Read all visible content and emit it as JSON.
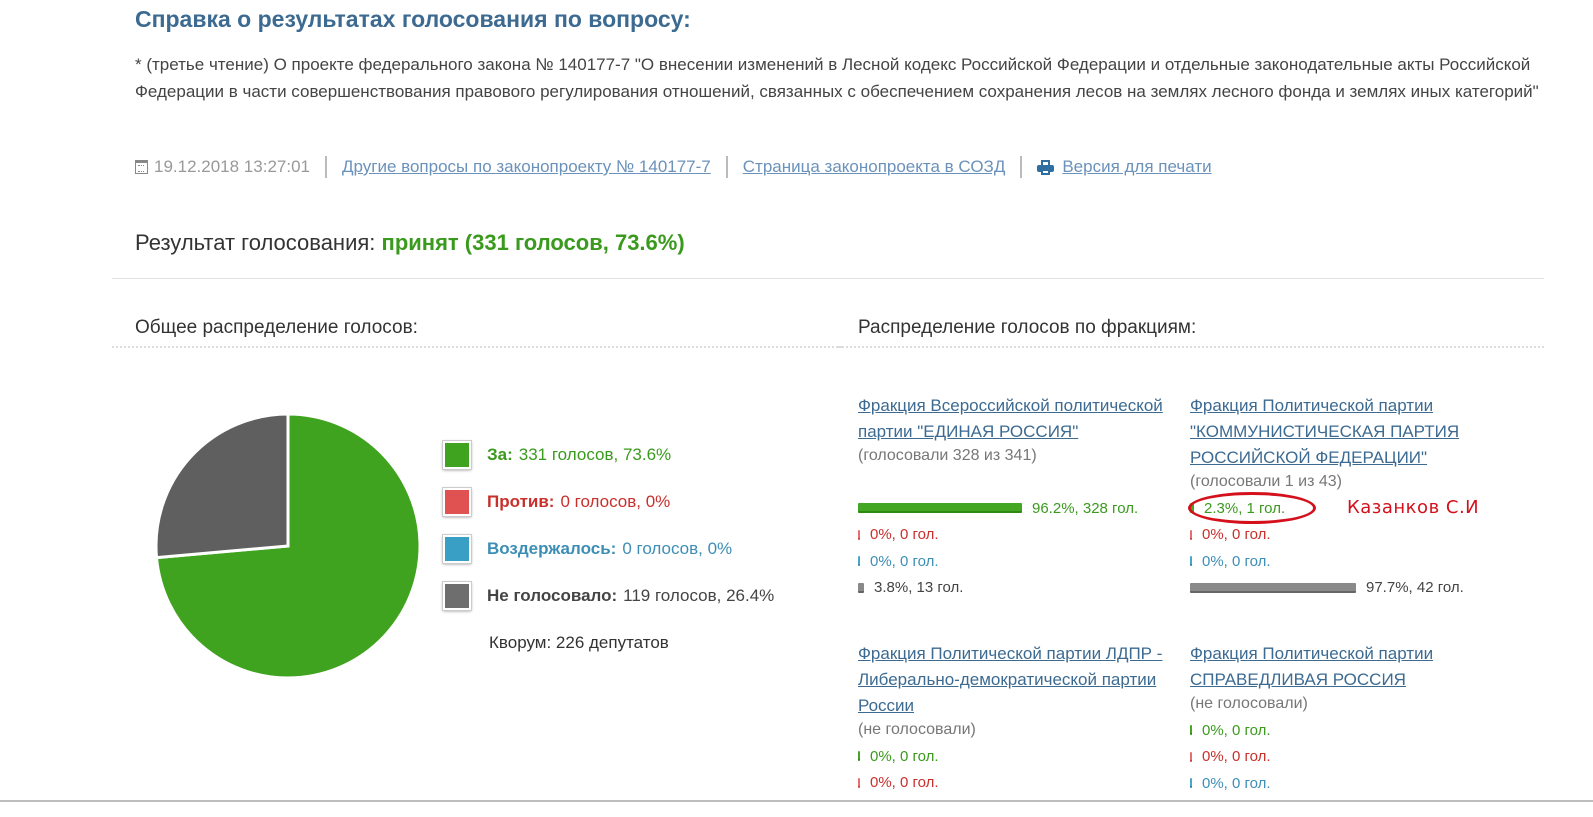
{
  "header": {
    "title": "Справка о результатах голосования по вопросу:",
    "question": "* (третье чтение) О проекте федерального закона № 140177-7 \"О внесении изменений в Лесной кодекс Российской Федерации и отдельные законодательные акты Российской Федерации в части совершенствования правового регулирования отношений, связанных с обеспечением сохранения лесов на землях лесного фонда и землях иных категорий\""
  },
  "meta": {
    "datetime": "19.12.2018 13:27:01",
    "link_other": "Другие вопросы по законопроекту № 140177-7",
    "link_sozd": "Страница законопроекта в СОЗД",
    "link_print": "Версия для печати"
  },
  "result": {
    "label": "Результат голосования:",
    "value": "принят (331 голосов, 73.6%)"
  },
  "overall": {
    "title": "Общее распределение голосов:",
    "legend": [
      {
        "label": "За:",
        "value": "331 голосов, 73.6%",
        "color": "#3fa31f"
      },
      {
        "label": "Против:",
        "value": "0 голосов, 0%",
        "color": "#e05252"
      },
      {
        "label": "Воздержалось:",
        "value": "0 голосов, 0%",
        "color": "#3a9fc4"
      },
      {
        "label": "Не голосовало:",
        "value": "119 голосов, 26.4%",
        "color": "#6e6e6e"
      }
    ],
    "quorum": "Кворум: 226 депутатов"
  },
  "chart_data": {
    "type": "pie",
    "categories": [
      "За",
      "Против",
      "Воздержалось",
      "Не голосовало"
    ],
    "values": [
      73.6,
      0,
      0,
      26.4
    ],
    "colors": [
      "#3fa31f",
      "#e05252",
      "#3a9fc4",
      "#5f5f5f"
    ]
  },
  "factions": {
    "title": "Распределение голосов по фракциям:",
    "items": [
      {
        "name": "Фракция Всероссийской политической партии \"ЕДИНАЯ РОССИЯ\"",
        "voted": "(голосовали 328 из 341)",
        "stats": [
          {
            "text": "96.2%, 328 гол.",
            "fraction": 0.962
          },
          {
            "text": "0%, 0 гол.",
            "fraction": 0
          },
          {
            "text": "0%, 0 гол.",
            "fraction": 0
          },
          {
            "text": "3.8%, 13 гол.",
            "fraction": 0.038
          }
        ]
      },
      {
        "name": "Фракция Политической партии \"КОММУНИСТИЧЕСКАЯ ПАРТИЯ РОССИЙСКОЙ ФЕДЕРАЦИИ\"",
        "voted": "(голосовали 1 из 43)",
        "stats": [
          {
            "text": "2.3%, 1 гол.",
            "fraction": 0.023
          },
          {
            "text": "0%, 0 гол.",
            "fraction": 0
          },
          {
            "text": "0%, 0 гол.",
            "fraction": 0
          },
          {
            "text": "97.7%, 42 гол.",
            "fraction": 0.977
          }
        ]
      },
      {
        "name": "Фракция Политической партии ЛДПР - Либерально-демократической партии России",
        "voted": "(не голосовали)",
        "stats": [
          {
            "text": "0%, 0 гол.",
            "fraction": 0
          },
          {
            "text": "0%, 0 гол.",
            "fraction": 0
          }
        ]
      },
      {
        "name": "Фракция Политической партии СПРАВЕДЛИВАЯ РОССИЯ",
        "voted": "(не голосовали)",
        "stats": [
          {
            "text": "0%, 0 гол.",
            "fraction": 0
          },
          {
            "text": "0%, 0 гол.",
            "fraction": 0
          },
          {
            "text": "0%, 0 гол.",
            "fraction": 0
          }
        ]
      }
    ]
  },
  "annotation": {
    "text": "Казанков С.И",
    "color": "#d4101c"
  }
}
